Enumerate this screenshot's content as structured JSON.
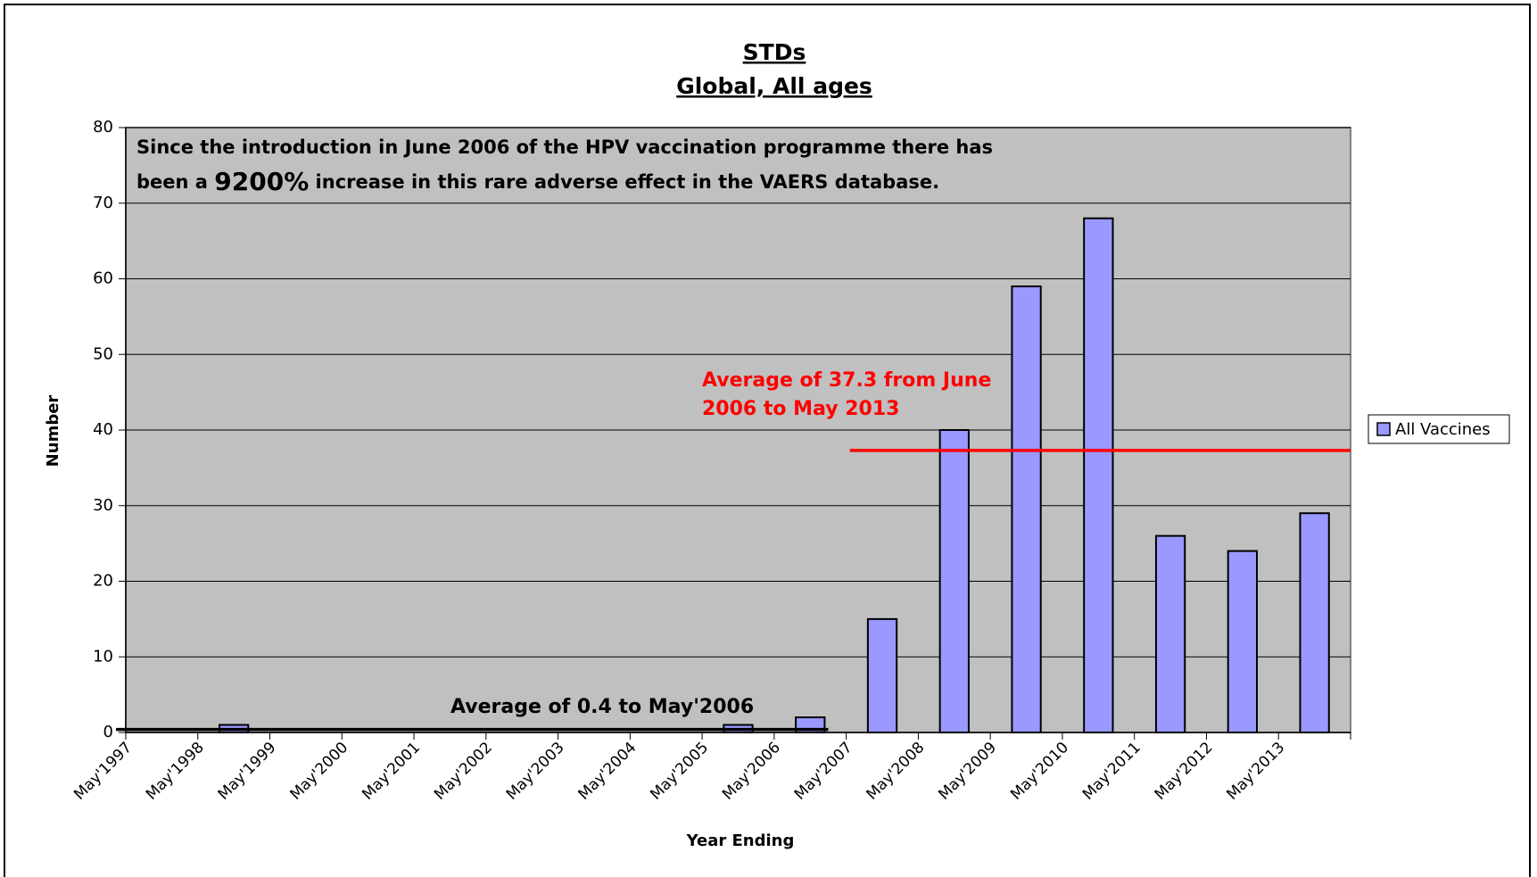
{
  "chart_data": {
    "type": "bar",
    "title": [
      "STDs",
      "Global, All ages"
    ],
    "annotation": [
      "Since the introduction in June 2006 of the HPV vaccination programme there has",
      "been a ",
      "9200%",
      " increase in this rare adverse effect in the VAERS database."
    ],
    "x_label": "Year Ending",
    "y_label": "Number",
    "categories": [
      "May'1997",
      "May'1998",
      "May'1999",
      "May'2000",
      "May'2001",
      "May'2002",
      "May'2003",
      "May'2004",
      "May'2005",
      "May'2006",
      "May'2007",
      "May'2008",
      "May'2009",
      "May'2010",
      "May'2011",
      "May'2012",
      "May'2013"
    ],
    "series": [
      {
        "name": "All Vaccines",
        "color": "#9999ff",
        "values": [
          0,
          1,
          0,
          0,
          0,
          0,
          0,
          0,
          1,
          2,
          15,
          40,
          59,
          68,
          26,
          24,
          29
        ]
      }
    ],
    "reference_lines": [
      {
        "value": 37.3,
        "color": "#ff0000",
        "label": [
          "Average of 37.3  from June",
          "2006 to May 2013"
        ]
      },
      {
        "value": 0.4,
        "color": "#000000",
        "label": [
          "Average of 0.4 to May'2006"
        ]
      }
    ],
    "ylim": [
      0,
      80
    ],
    "yticks": [
      0,
      10,
      20,
      30,
      40,
      50,
      60,
      70,
      80
    ],
    "grid": true,
    "legend": "right"
  }
}
